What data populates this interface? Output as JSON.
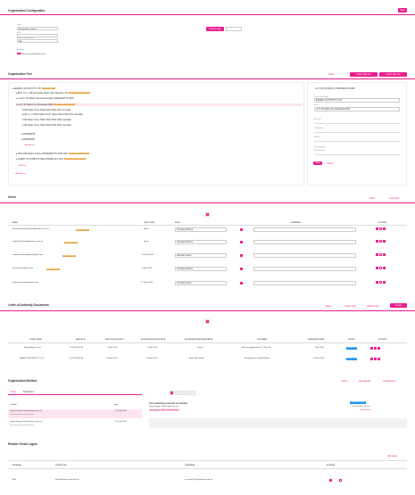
{
  "org_config": {
    "title": "Organisation Configuration",
    "save_label": "Save",
    "name_label": "Label",
    "name_value": "Energy Action Limited",
    "acn_label": "ACN",
    "acn_value": "",
    "parent_label": "Parent Organisation",
    "parent_value": "N/A",
    "upload_label": "Choose logo",
    "enabled_label": "Enabled",
    "multi_label": "Account Disability Association"
  },
  "tree": {
    "title": "Organisation Tree",
    "filters_label": "Filters",
    "import_csv_label": "Import Site List",
    "import_list_label": "Import Site List",
    "rows": [
      {
        "text": "ENERGY ACTION PTY LTD",
        "badge": "ORGANISATION"
      },
      {
        "text": "Bld 1 Lvl 1, 148 Springvale Road, Glen Waverley VIC",
        "badge": "MAINTENANCE MEMBER"
      },
      {
        "text": "Level 5, 36 Station Street Parramatta, PARRAMATTA NSW",
        "badge": ""
      },
      {
        "text": "Lvl 5, 36 Station St, Parramatta NSW",
        "badge": "MAINTENANCE MEMBER"
      },
      {
        "text": "5/36 Station St E, Parramatta NSW 2150, Australia",
        "badge": ""
      },
      {
        "text": "Suite 1, Lvl 5/36 Station St W, Harris Park NSW 2150, Australia",
        "badge": ""
      },
      {
        "text": "7/36 Station St E, Harris Park NSW 2150, Australia",
        "badge": ""
      },
      {
        "text": "1/36 Station St E, Harris Park NSW 2150, Australia",
        "badge": ""
      },
      {
        "text": "4000086235",
        "badge": ""
      },
      {
        "text": "4000080063",
        "badge": ""
      },
      {
        "text": "Add Address",
        "badge": ""
      },
      {
        "text": "OFF 2/36 Station E Street PARRAMATTA NSW 2150",
        "badge": "MAINTENANCE MEMBER"
      },
      {
        "text": "U DEPT IN COHEN ST BELCONNEN ACT 2617",
        "badge": "MAINTENANCE MEMBER"
      },
      {
        "text": "Add Site",
        "badge": ""
      },
      {
        "text": "Add Address",
        "badge": ""
      }
    ],
    "detail": {
      "heading": "Lvl 5, 36 STATION ST, PARRAMATTA NSW",
      "org_label": "Parent Organisation",
      "org_value": "ENERGY ACTION PTY LTD",
      "name_label": "Name",
      "name_value": "Lvl 5, 36 Station St, Parramatta NSW",
      "f1": "Site code",
      "f2": "Site Number",
      "f3": "Meter Id",
      "f4": "Site Description",
      "f5": "Site description",
      "save_label": "Save",
      "cancel_label": "Cancel"
    }
  },
  "users": {
    "title": "Users",
    "filters_label": "Filters",
    "invite_label": "Invite User",
    "page": "1",
    "columns": [
      "Email",
      "Last Login",
      "Role",
      "",
      "Companies",
      "Actions"
    ],
    "rows": [
      {
        "email": "kwenke.bastermo@supplyfunders.com.au",
        "badge": "NEW PENDING",
        "last": "Never",
        "role": "Company Admins"
      },
      {
        "email": "mark.finlay@supplyfunders.com.au",
        "badge": "NEW PENDING",
        "last": "Never",
        "role": "Company Admins"
      },
      {
        "email": "nathanreception4oberl@gmail.com",
        "badge": "NEW PENDING",
        "last": "20 Sept 2023",
        "role": "Company Users"
      },
      {
        "email": "ron.maxwe@gmail.com",
        "badge": "NEW PENDING",
        "last": "6 Aug 2023",
        "role": "Company Admins"
      },
      {
        "email": "shmm.newsom@outlook.com",
        "badge": "",
        "last": "27 Sept 2024",
        "role": "Company Users"
      }
    ]
  },
  "loa": {
    "title": "Letter of Authority Documents",
    "filters_label": "Filters",
    "create_label": "Create LOA",
    "upload_label": "Upload LOA",
    "export_label": "Export",
    "page": "1",
    "columns": [
      "Client Name",
      "ABN / ACN",
      "Date of Authority",
      "Authorisation End Date",
      "Authorised Representative",
      "File Name",
      "Submission Date",
      "Status",
      "Actions"
    ],
    "rows": [
      {
        "client": "Energy Action - test",
        "abn": "23 200 363 339",
        "date": "7 Nov 2023",
        "end": "7 Nov 2025",
        "rep": "Tony E",
        "file": "LOA_EnergyAction-test_7-Nov-23...",
        "sub": "7 Nov 2023",
        "status": "SUBMITTED"
      },
      {
        "client": "ENERGY ACTION PTY LTD",
        "abn": "90 137 363 636",
        "date": "23 Feb 2023",
        "end": "23 Feb 2025",
        "rep": "Bryce Macfarlane",
        "file": "Energy Action LOA 2023.pdf",
        "sub": "23 Feb 2023",
        "status": "SUBMITTED"
      }
    ]
  },
  "mailbox": {
    "title": "Organisation Mailbox",
    "filters_label": "Filters",
    "sync_label": "Sync Emails",
    "config_label": "Configuration",
    "tab_inbox": "Inbox",
    "tab_forwarded": "Forwarded",
    "col_sender": "Sender",
    "col_sent": "Sent",
    "pages": [
      "1",
      "2",
      "3",
      "4",
      "5"
    ],
    "emails": [
      {
        "sender": "Origin Energy <hello@origin.com.au>",
        "sub": "Your electricity account is overdue",
        "sent": "25 July 2023"
      },
      {
        "sender": "Origin Energy <hello@origin.com.au>",
        "sub": "Your electricity account is overdue",
        "sent": "25 July 2023"
      }
    ],
    "detail": {
      "subject": "Your electricity account is overdue",
      "from": "Origin Energy <hello@origin.com.au>",
      "to": "Energy Action <ADDR LEVEL ASA EA>",
      "date": "26 July 2023, 4:07 am",
      "tag": "Forwarded to portal",
      "attach": "Download files"
    }
  },
  "retailer": {
    "title": "Retailer Portal Logins",
    "add_label": "Add Login",
    "columns": [
      "Retailer",
      "Portal URL",
      "Username",
      "Actions"
    ],
    "rows": [
      {
        "retailer": "AGL",
        "url": "https://business.agl.com.au",
        "user": "accounts@energyaction.com.au"
      }
    ]
  }
}
